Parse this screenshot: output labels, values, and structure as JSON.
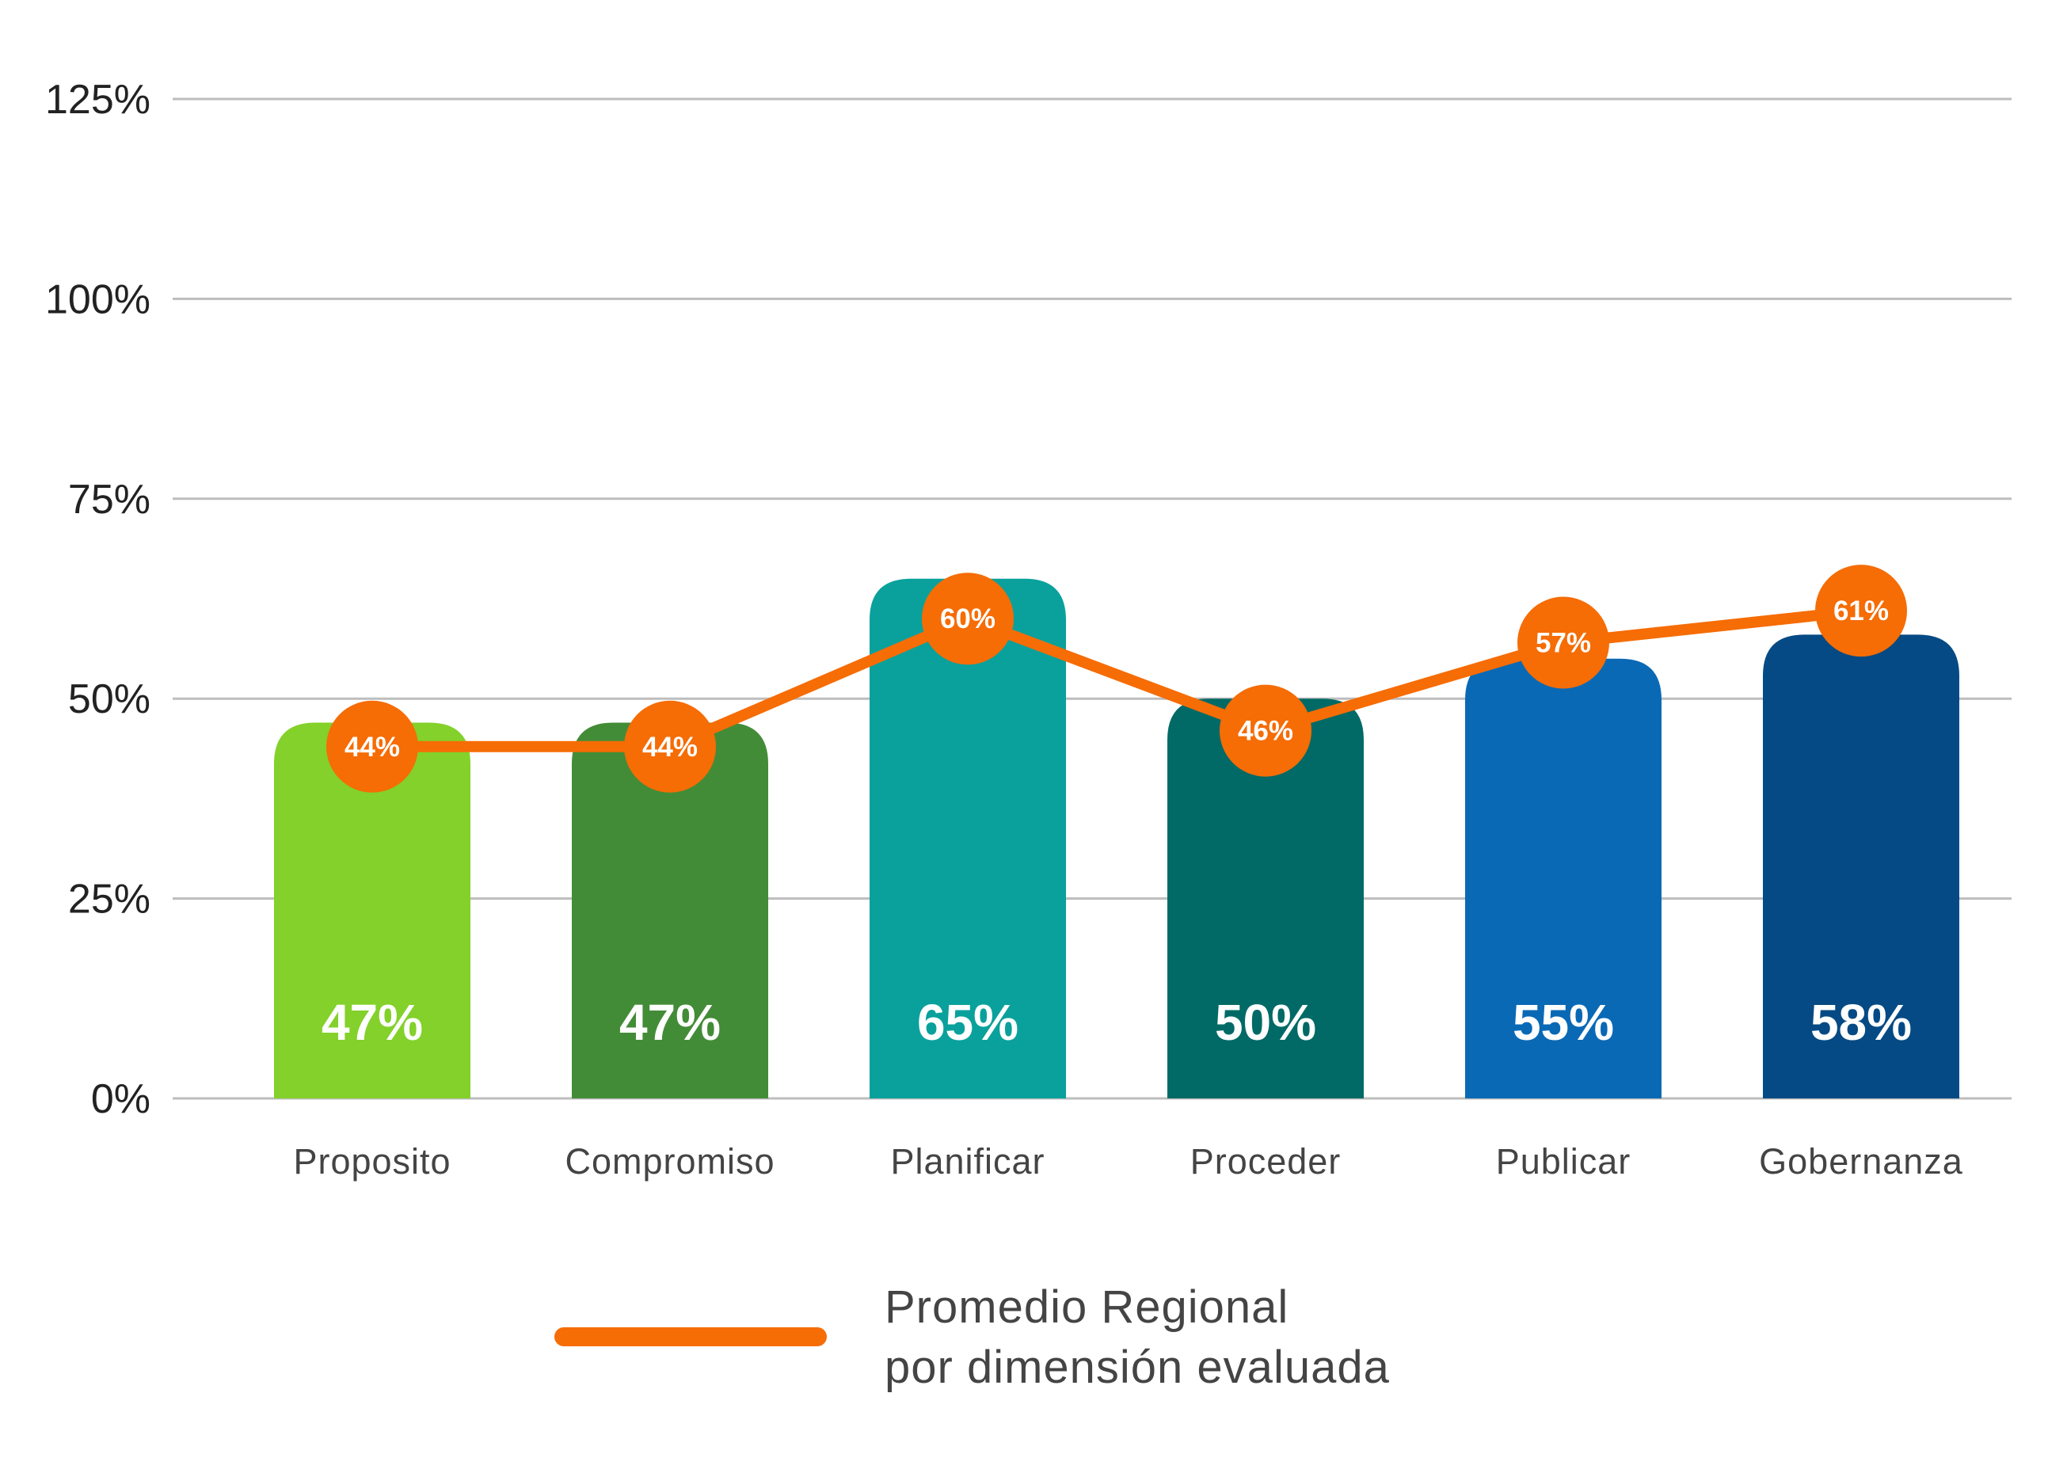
{
  "chart_data": {
    "type": "bar",
    "categories": [
      "Proposito",
      "Compromiso",
      "Planificar",
      "Proceder",
      "Publicar",
      "Gobernanza"
    ],
    "series": [
      {
        "type": "bar",
        "values": [
          47,
          47,
          65,
          50,
          55,
          58
        ],
        "value_labels": [
          "47%",
          "47%",
          "65%",
          "50%",
          "55%",
          "58%"
        ],
        "colors": [
          "#83d12a",
          "#438c37",
          "#0aa19c",
          "#026a66",
          "#0a69b5",
          "#054a84"
        ]
      },
      {
        "type": "line",
        "name": "Promedio Regional por dimensión evaluada",
        "values": [
          44,
          44,
          60,
          46,
          57,
          61
        ],
        "value_labels": [
          "44%",
          "44%",
          "60%",
          "46%",
          "57%",
          "61%"
        ],
        "color": "#f66c05"
      }
    ],
    "ylim": [
      0,
      125
    ],
    "yticks": [
      0,
      25,
      50,
      75,
      100,
      125
    ],
    "ytick_labels": [
      "0%",
      "25%",
      "50%",
      "75%",
      "100%",
      "125%"
    ],
    "grid": true,
    "legend": {
      "position": "bottom",
      "line_label_1": "Promedio Regional",
      "line_label_2": "por dimensión evaluada"
    }
  }
}
